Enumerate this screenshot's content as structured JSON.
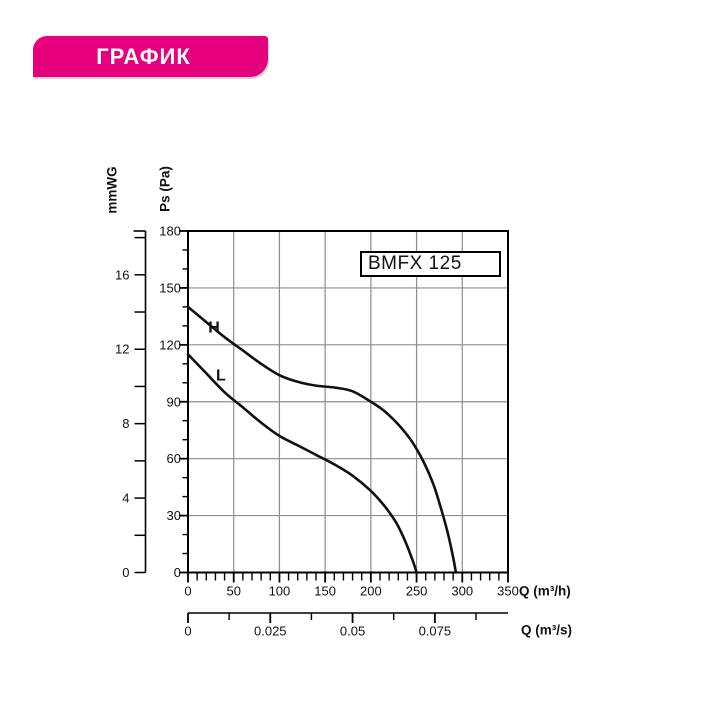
{
  "page": {
    "background": "#ffffff"
  },
  "header": {
    "title": "ГРАФИК",
    "bg_color": "#E6007E",
    "text_color": "#ffffff"
  },
  "model_box": {
    "label": "BMFX 125"
  },
  "chart_data": {
    "type": "line",
    "title": "BMFX 125",
    "x_axis_primary": {
      "label": "Q (m³/h)",
      "min": 0,
      "max": 350,
      "major_ticks": [
        0,
        50,
        100,
        150,
        200,
        250,
        300,
        350
      ],
      "minor_step": 10
    },
    "x_axis_secondary": {
      "label": "Q (m³/s)",
      "tick_step": 0.0125,
      "tick_max": 0.0875,
      "hours_per_second": 3600,
      "labeled_ticks": [
        {
          "value": 0,
          "label": "0"
        },
        {
          "value": 0.025,
          "label": "0.025"
        },
        {
          "value": 0.05,
          "label": "0.05"
        },
        {
          "value": 0.075,
          "label": "0.075"
        }
      ]
    },
    "y_axis_pa": {
      "label": "Ps (Pa)",
      "min": 0,
      "max": 180,
      "major_ticks": [
        0,
        30,
        60,
        90,
        120,
        150,
        180
      ],
      "minor_step": 10
    },
    "y_axis_mmwg": {
      "label": "mmWG",
      "labeled_ticks": [
        0,
        4,
        8,
        12,
        16
      ],
      "tick_step": 2,
      "pa_per_unit": 9.80665
    },
    "grid": {
      "x_step": 50,
      "y_step": 30,
      "color": "#8c8c8c"
    },
    "curve_color": "#111111",
    "axis_color": "#000000",
    "series": [
      {
        "name": "H",
        "label_at": [
          28.5,
          129
        ],
        "points": [
          [
            0,
            140
          ],
          [
            20,
            132
          ],
          [
            40,
            124
          ],
          [
            60,
            117
          ],
          [
            80,
            110
          ],
          [
            100,
            104
          ],
          [
            120,
            100.5
          ],
          [
            140,
            98.5
          ],
          [
            160,
            97.5
          ],
          [
            180,
            95.5
          ],
          [
            200,
            90
          ],
          [
            215,
            85
          ],
          [
            230,
            78
          ],
          [
            245,
            69
          ],
          [
            258,
            58
          ],
          [
            268,
            47
          ],
          [
            276,
            35
          ],
          [
            284,
            21
          ],
          [
            290,
            8
          ],
          [
            293,
            0
          ]
        ]
      },
      {
        "name": "L",
        "label_at": [
          36,
          103.5
        ],
        "points": [
          [
            0,
            115
          ],
          [
            20,
            105
          ],
          [
            40,
            95
          ],
          [
            60,
            87
          ],
          [
            80,
            79
          ],
          [
            100,
            72
          ],
          [
            120,
            67
          ],
          [
            140,
            62
          ],
          [
            160,
            57
          ],
          [
            180,
            51
          ],
          [
            200,
            43
          ],
          [
            215,
            35
          ],
          [
            228,
            26
          ],
          [
            238,
            16
          ],
          [
            246,
            6
          ],
          [
            250,
            0
          ]
        ]
      }
    ]
  }
}
